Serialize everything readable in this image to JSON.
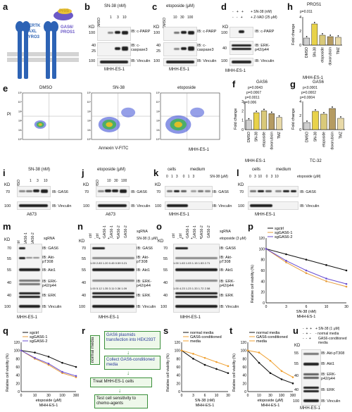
{
  "panels": {
    "a": {
      "label": "a",
      "ligand": "ProS",
      "receptors": [
        "MERTK",
        "AXL",
        "TYRO3"
      ],
      "gas": [
        "GAS6/",
        "PROS1"
      ]
    },
    "b": {
      "label": "b",
      "conc_title": "SN-38 (nM)",
      "lanes": [
        "DMSO",
        "1",
        "3",
        "10"
      ],
      "kd": "KD",
      "ibs": [
        "IB: c-PARP",
        "IB: c-",
        "caspase3",
        "IB: Vinculin"
      ],
      "cell": "MHH-ES-1",
      "mw": [
        "100",
        "40",
        "25",
        "100"
      ]
    },
    "c": {
      "label": "c",
      "conc_title": "etoposide (μM)",
      "lanes": [
        "DMSO",
        "10",
        "30",
        "100"
      ],
      "kd": "KD",
      "ibs": [
        "IB: c-PARP",
        "IB: c-",
        "caspase3",
        "IB: Vinculin"
      ],
      "cell": "MHH-ES-1",
      "mw": [
        "100",
        "40",
        "25",
        "100"
      ]
    },
    "d": {
      "label": "d",
      "rows": [
        "+ SN-38 (nM)",
        "+ Z-VAD (25 μM)"
      ],
      "signs1": [
        "-",
        "+",
        "+"
      ],
      "signs2": [
        "-",
        "-",
        "+"
      ],
      "kd": "KD",
      "ibs": [
        "IB: c-PARP",
        "IB: ERK-",
        "p42/p44",
        "IB: Vinculin"
      ],
      "cell": "MHH-ES-1",
      "mw": [
        "100",
        "40",
        "100"
      ]
    },
    "e": {
      "label": "e",
      "titles": [
        "DMSO",
        "SN-38",
        "etoposide"
      ],
      "xlabel": "Annexin V-FITC",
      "ylabel": "PI",
      "cell": "MHH-ES-1",
      "ticks": [
        "10⁰",
        "10¹",
        "10²",
        "10³",
        "10⁴",
        "10⁵"
      ]
    },
    "f": {
      "label": "f",
      "title": "GAS6",
      "pvals": [
        "p=0.0043",
        "p=0.0067",
        "p=0.0011",
        "p=0.006"
      ],
      "ylabel": "Fold change",
      "cats": [
        "DMSO",
        "SN-38",
        "etoposide",
        "doxorubicin",
        "TMZ"
      ],
      "values": [
        1.0,
        1.8,
        2.0,
        1.7,
        1.3
      ],
      "yticks": [
        "0",
        "1",
        "2",
        "3"
      ],
      "cell": "MHH-ES-1"
    },
    "g": {
      "label": "g",
      "title": "GAS6",
      "pvals": [
        "p<0.0001",
        "p=0.0002",
        "p=0.0004"
      ],
      "ylabel": "Fold change",
      "cats": [
        "DMSO",
        "SN-38",
        "etoposide",
        "doxorubicin",
        "TMZ"
      ],
      "values": [
        1.0,
        2.6,
        2.2,
        3.0,
        1.6
      ],
      "yticks": [
        "0",
        "2",
        "4"
      ],
      "cell": "TC-32"
    },
    "h": {
      "label": "h",
      "title": "PROS1",
      "pvals": [
        "p=0.011"
      ],
      "ylabel": "Fold change",
      "cats": [
        "DMSO",
        "SN-38",
        "etoposide",
        "doxorubicin",
        "TMZ"
      ],
      "values": [
        1.0,
        3.0,
        1.4,
        1.2,
        1.1
      ],
      "yticks": [
        "0",
        "2",
        "4"
      ],
      "cell": "MHH-ES-1"
    },
    "i": {
      "label": "i",
      "conc_title": "SN-38 (nM)",
      "lanes": [
        "DMSO",
        "1",
        "3",
        "10"
      ],
      "kd": "KD",
      "ibs": [
        "IB: GAS6",
        "IB: Vinculin"
      ],
      "mw": [
        "70",
        "100"
      ],
      "cell": "A673"
    },
    "j": {
      "label": "j",
      "conc_title": "etoposide (μM)",
      "lanes": [
        "DMSO",
        "10",
        "30",
        "100"
      ],
      "kd": "KD",
      "ibs": [
        "IB: GAS6",
        "IB: Vinculin"
      ],
      "mw": [
        "70",
        "100"
      ],
      "cell": "A673"
    },
    "k": {
      "label": "k",
      "groups": [
        "cells",
        "medium"
      ],
      "lanes": [
        "0",
        "1",
        "3",
        "0",
        "1",
        "3"
      ],
      "conc": "SN-38 (μM)",
      "kd": "KD",
      "ibs": [
        "IB: GAS6",
        "IB: Vinculin"
      ],
      "mw": [
        "70",
        "100"
      ],
      "cell": "MHH-ES-1"
    },
    "l": {
      "label": "l",
      "groups": [
        "cells",
        "medium"
      ],
      "lanes": [
        "0",
        "3",
        "10",
        "0",
        "3",
        "10"
      ],
      "conc": "etoposide (μM)",
      "kd": "KD",
      "ibs": [
        "IB: GAS6",
        "IB: Vinculin"
      ],
      "mw": [
        "70",
        "100"
      ],
      "cell": "MHH-ES-1"
    },
    "m": {
      "label": "m",
      "lanes": [
        "ctrl",
        "GAS6-1",
        "GAS6-2"
      ],
      "sg": "sgRNA",
      "kd": "KD",
      "ibs": [
        "IB: GAS6",
        "IB: Akt-",
        "pT308",
        "IB: Akt1",
        "IB: ERK-",
        "p42/p44",
        "IB: ERK",
        "IB: Vinculin"
      ],
      "mw": [
        "70",
        "55",
        "55",
        "40",
        "40",
        "100"
      ],
      "cell": "MHH-ES-1"
    },
    "n": {
      "label": "n",
      "lanes": [
        "ctrl",
        "ctrl",
        "GAS6-1",
        "GAS6-1",
        "GAS6-2",
        "GAS6-2"
      ],
      "sg": "sgRNA",
      "drug": "SN-38 (1 μM)",
      "signs": [
        "-",
        "+",
        "-",
        "+",
        "-",
        "+"
      ],
      "kd": "KD",
      "ibs": [
        "IB: GAS6",
        "IB: Akt-",
        "pT308",
        "IB: Akt1",
        "IB: ERK-",
        "p42/p44",
        "IB: ERK",
        "IB: Vinculin"
      ],
      "q1": [
        "1.00",
        "2.83",
        "1.20",
        "0.45",
        "0.59",
        "0.21"
      ],
      "q2": [
        "1.00",
        "5.12",
        "1.35",
        "3.11",
        "0.36",
        "1.09"
      ],
      "mw": [
        "70",
        "55",
        "55",
        "40",
        "40",
        "100"
      ],
      "cell": "MHH-ES-1"
    },
    "o": {
      "label": "o",
      "lanes": [
        "ctrl",
        "ctrl",
        "GAS6-1",
        "GAS6-1",
        "GAS6-2",
        "GAS6-2"
      ],
      "sg": "sgRNA",
      "drug": "etoposide (3 μM)",
      "signs": [
        "-",
        "+",
        "-",
        "+",
        "-",
        "+"
      ],
      "kd": "KD",
      "ibs": [
        "IB: GAS6",
        "IB: Akt-",
        "pT308",
        "IB: Akt1",
        "IB: ERK-",
        "p42/p44",
        "IB: ERK",
        "IB: Vinculin"
      ],
      "q1": [
        "1.00",
        "1.63",
        "1.03",
        "1.15",
        "1.53",
        "2.71"
      ],
      "q2": [
        "1.00",
        "4.23",
        "1.23",
        "1.33",
        "1.72",
        "2.58"
      ],
      "mw": [
        "70",
        "55",
        "55",
        "40",
        "40",
        "100"
      ],
      "cell": "MHH-ES-1"
    },
    "p": {
      "label": "p",
      "legend": [
        "sgctrl",
        "sgGAS6-1",
        "sgGAS6-2"
      ],
      "ylabel": "Relative cell viability (%)",
      "xlabel": "SN-38 (nM)",
      "cell": "MHH-ES-1",
      "xticks": [
        "0",
        "3",
        "6",
        "10",
        "30"
      ],
      "yticks": [
        "0",
        "20",
        "40",
        "60",
        "80",
        "100",
        "120"
      ]
    },
    "q": {
      "label": "q",
      "legend": [
        "sgctrl",
        "sgGAS6-1",
        "sgGAS6-2"
      ],
      "ylabel": "Relative cell viability (%)",
      "xlabel": "etoposide (μM)",
      "cell": "MHH-ES-1",
      "xticks": [
        "0",
        "10",
        "30",
        "100",
        "300"
      ],
      "yticks": [
        "0",
        "20",
        "40",
        "60",
        "80",
        "100",
        "120"
      ]
    },
    "r": {
      "label": "r",
      "boxes": [
        "GAS6 plasmids transfection into HEK293T",
        "Collect GAS6-conditioned media",
        "Treat MHH-ES-1 cells",
        "Test cell sensitivity to chemo-agents"
      ],
      "side": "normal media"
    },
    "s": {
      "label": "s",
      "legend": [
        "normal media",
        "GAS6-conditioned",
        "media"
      ],
      "ylabel": "Relative cell viability (%)",
      "xlabel": "SN-38 (nM)",
      "cell": "MHH-ES-1",
      "xticks": [
        "0",
        "3",
        "6",
        "10",
        "30"
      ],
      "yticks": [
        "0",
        "20",
        "40",
        "60",
        "80",
        "100",
        "120"
      ]
    },
    "t": {
      "label": "t",
      "legend": [
        "normal media",
        "GAS6-conditioned",
        "media"
      ],
      "ylabel": "Relative cell viability (%)",
      "xlabel": "etoposide (μM)",
      "cell": "MHH-ES-1",
      "xticks": [
        "0",
        "10",
        "30",
        "100",
        "300"
      ],
      "yticks": [
        "0",
        "20",
        "40",
        "60",
        "80",
        "100",
        "120"
      ]
    },
    "u": {
      "label": "u",
      "rows": [
        "+ SN-38 (1 μM)",
        "- normal media",
        "GAS6-conditioned",
        "media"
      ],
      "signs1": [
        "-",
        "+",
        "+"
      ],
      "signs2": [
        "-",
        "+",
        "-"
      ],
      "signs3": [
        "-",
        "-",
        "+"
      ],
      "kd": "KD",
      "ibs": [
        "IB: Akt-pT308",
        "IB: Akt1",
        "IB: ERK-",
        "p42/p44",
        "IB: ERK",
        "IB: Vinculin"
      ],
      "mw": [
        "55",
        "55",
        "40",
        "40",
        "100"
      ],
      "cell": "MHH-ES-1"
    }
  },
  "chart_data": [
    {
      "type": "bar",
      "title": "GAS6",
      "panel": "f",
      "categories": [
        "DMSO",
        "SN-38",
        "etoposide",
        "doxorubicin",
        "TMZ"
      ],
      "values": [
        1.0,
        1.8,
        2.0,
        1.7,
        1.3
      ],
      "ylabel": "Fold change",
      "ylim": [
        0,
        3
      ]
    },
    {
      "type": "bar",
      "title": "GAS6",
      "panel": "g",
      "categories": [
        "DMSO",
        "SN-38",
        "etoposide",
        "doxorubicin",
        "TMZ"
      ],
      "values": [
        1.0,
        2.6,
        2.2,
        3.0,
        1.6
      ],
      "ylabel": "Fold change",
      "ylim": [
        0,
        4
      ]
    },
    {
      "type": "bar",
      "title": "PROS1",
      "panel": "h",
      "categories": [
        "DMSO",
        "SN-38",
        "etoposide",
        "doxorubicin",
        "TMZ"
      ],
      "values": [
        1.0,
        3.0,
        1.4,
        1.2,
        1.1
      ],
      "ylabel": "Fold change",
      "ylim": [
        0,
        4
      ]
    },
    {
      "type": "line",
      "panel": "p",
      "xlabel": "SN-38 (nM)",
      "ylabel": "Relative cell viability (%)",
      "x": [
        "0",
        "3",
        "6",
        "10",
        "30"
      ],
      "series": [
        {
          "name": "sgctrl",
          "values": [
            100,
            90,
            80,
            70,
            60
          ]
        },
        {
          "name": "sgGAS6-1",
          "values": [
            100,
            75,
            55,
            40,
            30
          ]
        },
        {
          "name": "sgGAS6-2",
          "values": [
            100,
            78,
            60,
            45,
            35
          ]
        }
      ],
      "ylim": [
        0,
        120
      ]
    },
    {
      "type": "line",
      "panel": "q",
      "xlabel": "etoposide (μM)",
      "ylabel": "Relative cell viability (%)",
      "x": [
        "0",
        "10",
        "30",
        "100",
        "300"
      ],
      "series": [
        {
          "name": "sgctrl",
          "values": [
            100,
            95,
            85,
            70,
            60
          ]
        },
        {
          "name": "sgGAS6-1",
          "values": [
            100,
            80,
            65,
            45,
            35
          ]
        },
        {
          "name": "sgGAS6-2",
          "values": [
            100,
            82,
            68,
            48,
            38
          ]
        }
      ],
      "ylim": [
        0,
        120
      ]
    },
    {
      "type": "line",
      "panel": "s",
      "xlabel": "SN-38 (nM)",
      "ylabel": "Relative cell viability (%)",
      "x": [
        "0",
        "3",
        "6",
        "10",
        "30"
      ],
      "series": [
        {
          "name": "normal media",
          "values": [
            100,
            80,
            65,
            55,
            45
          ]
        },
        {
          "name": "GAS6-conditioned media",
          "values": [
            100,
            92,
            82,
            72,
            62
          ]
        }
      ],
      "ylim": [
        0,
        120
      ]
    },
    {
      "type": "line",
      "panel": "t",
      "xlabel": "etoposide (μM)",
      "ylabel": "Relative cell viability (%)",
      "x": [
        "0",
        "10",
        "30",
        "100",
        "300"
      ],
      "series": [
        {
          "name": "normal media",
          "values": [
            100,
            70,
            45,
            30,
            20
          ]
        },
        {
          "name": "GAS6-conditioned media",
          "values": [
            100,
            95,
            75,
            50,
            35
          ]
        }
      ],
      "ylim": [
        0,
        120
      ]
    }
  ],
  "colors": {
    "bar_dmso": "#cfcfcf",
    "bar_sn38": "#e8d24a",
    "bar_etop": "#d9c97a",
    "bar_doxo": "#b59b62",
    "bar_tmz": "#e8d9a8",
    "line_ctrl": "#111111",
    "line_sg1": "#e79d3c",
    "line_sg2": "#6a4fd1",
    "line_cond": "#f0a030",
    "flow_blue": "#2b3fd1"
  }
}
